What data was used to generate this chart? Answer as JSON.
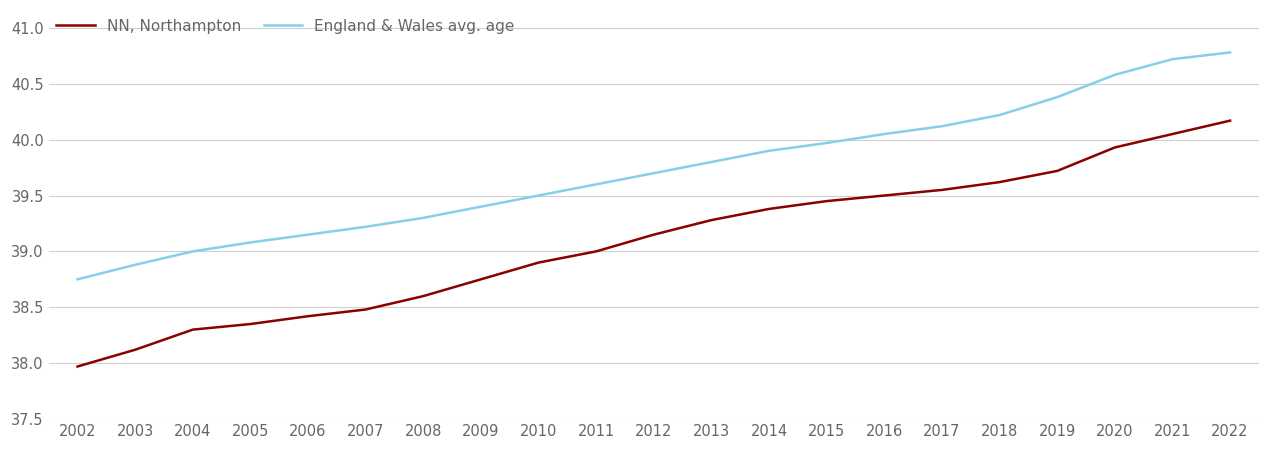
{
  "years": [
    2002,
    2003,
    2004,
    2005,
    2006,
    2007,
    2008,
    2009,
    2010,
    2011,
    2012,
    2013,
    2014,
    2015,
    2016,
    2017,
    2018,
    2019,
    2020,
    2021,
    2022
  ],
  "nn_northampton": [
    37.97,
    38.12,
    38.3,
    38.35,
    38.42,
    38.48,
    38.6,
    38.75,
    38.9,
    39.0,
    39.15,
    39.28,
    39.38,
    39.45,
    39.5,
    39.55,
    39.62,
    39.72,
    39.93,
    40.05,
    40.17
  ],
  "england_wales": [
    38.75,
    38.88,
    39.0,
    39.08,
    39.15,
    39.22,
    39.3,
    39.4,
    39.5,
    39.6,
    39.7,
    39.8,
    39.9,
    39.97,
    40.05,
    40.12,
    40.22,
    40.38,
    40.58,
    40.72,
    40.78
  ],
  "nn_color": "#8b0000",
  "ew_color": "#87CEEB",
  "nn_label": "NN, Northampton",
  "ew_label": "England & Wales avg. age",
  "ylim": [
    37.5,
    41.15
  ],
  "yticks": [
    37.5,
    38.0,
    38.5,
    39.0,
    39.5,
    40.0,
    40.5,
    41.0
  ],
  "background_color": "#ffffff",
  "grid_color": "#d0d0d0",
  "line_width": 1.8,
  "legend_fontsize": 11,
  "tick_fontsize": 10.5,
  "tick_color": "#666666"
}
